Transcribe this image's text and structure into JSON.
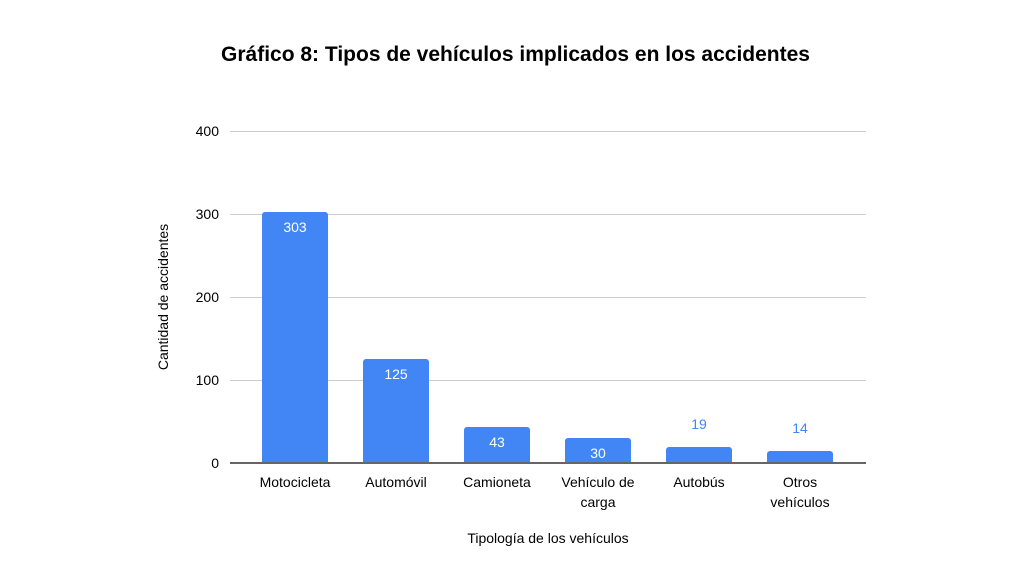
{
  "chart_data": {
    "type": "bar",
    "title": "Gráfico 8: Tipos de vehículos implicados en los accidentes",
    "xlabel": "Tipología de los vehículos",
    "ylabel": "Cantidad de accidentes",
    "categories": [
      "Motocicleta",
      "Automóvil",
      "Camioneta",
      "Vehículo de carga",
      "Autobús",
      "Otros vehículos"
    ],
    "values": [
      303,
      125,
      43,
      30,
      19,
      14
    ],
    "ylim": [
      0,
      400
    ],
    "yticks": [
      0,
      100,
      200,
      300,
      400
    ],
    "grid": true,
    "legend_position": "none",
    "colors": {
      "bar": "#4285f4",
      "annotation_inside": "#ffffff",
      "annotation_outside": "#4285f4",
      "gridline": "#cccccc",
      "baseline": "#666666",
      "text": "#000000"
    }
  }
}
